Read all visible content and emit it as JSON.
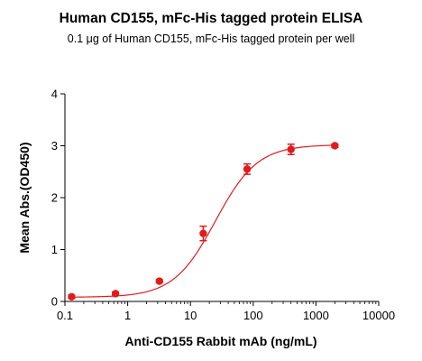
{
  "chart_data": {
    "type": "scatter",
    "title": "Human CD155, mFc-His tagged protein ELISA",
    "subtitle": "0.1 μg of Human CD155, mFc-His tagged protein per well",
    "xlabel": "Anti-CD155 Rabbit mAb (ng/mL)",
    "ylabel": "Mean Abs.(OD450)",
    "xscale": "log",
    "xlim": [
      0.1,
      10000
    ],
    "ylim": [
      0,
      4
    ],
    "xticks": [
      "0.1",
      "1",
      "10",
      "100",
      "1000",
      "10000"
    ],
    "yticks": [
      "0",
      "1",
      "2",
      "3",
      "4"
    ],
    "grid": false,
    "color": "#e31a1c",
    "points": [
      {
        "x": 0.128,
        "y": 0.09,
        "err": 0.03
      },
      {
        "x": 0.64,
        "y": 0.15,
        "err": 0.03
      },
      {
        "x": 3.2,
        "y": 0.39,
        "err": 0.03
      },
      {
        "x": 16,
        "y": 1.31,
        "err": 0.14
      },
      {
        "x": 80,
        "y": 2.55,
        "err": 0.1
      },
      {
        "x": 400,
        "y": 2.93,
        "err": 0.1
      },
      {
        "x": 2000,
        "y": 3.0,
        "err": 0.03
      }
    ],
    "fit": {
      "bottom": 0.08,
      "top": 3.02,
      "ec50": 25,
      "hill": 1.3
    }
  }
}
